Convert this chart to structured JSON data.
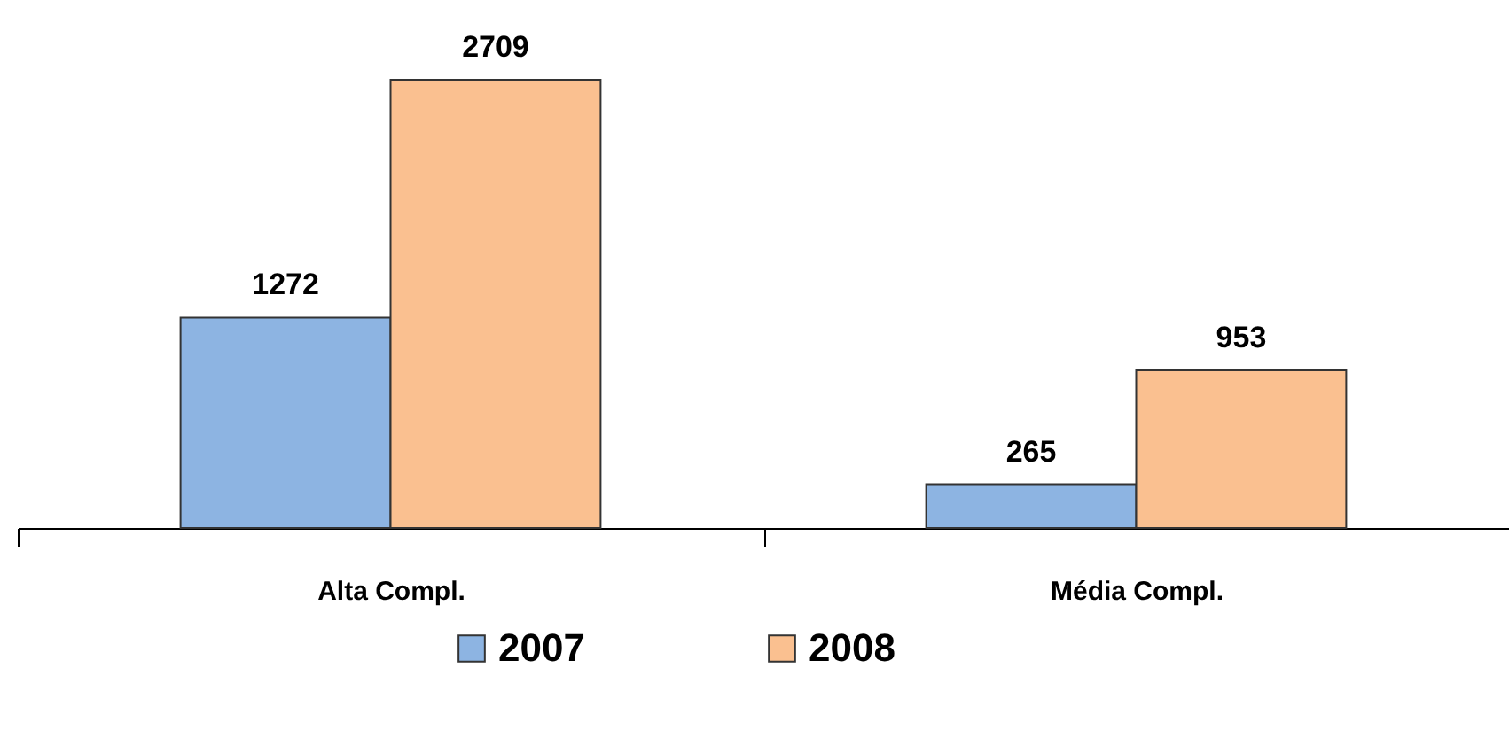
{
  "chart_data": {
    "type": "bar",
    "categories": [
      "Alta Compl.",
      "Média Compl."
    ],
    "series": [
      {
        "name": "2007",
        "color": "#8db4e2",
        "values": [
          1272,
          265
        ]
      },
      {
        "name": "2008",
        "color": "#fac090",
        "values": [
          2709,
          953
        ]
      }
    ],
    "data_labels": true,
    "legend": "bottom",
    "grid": false,
    "tick_labels": "x"
  }
}
